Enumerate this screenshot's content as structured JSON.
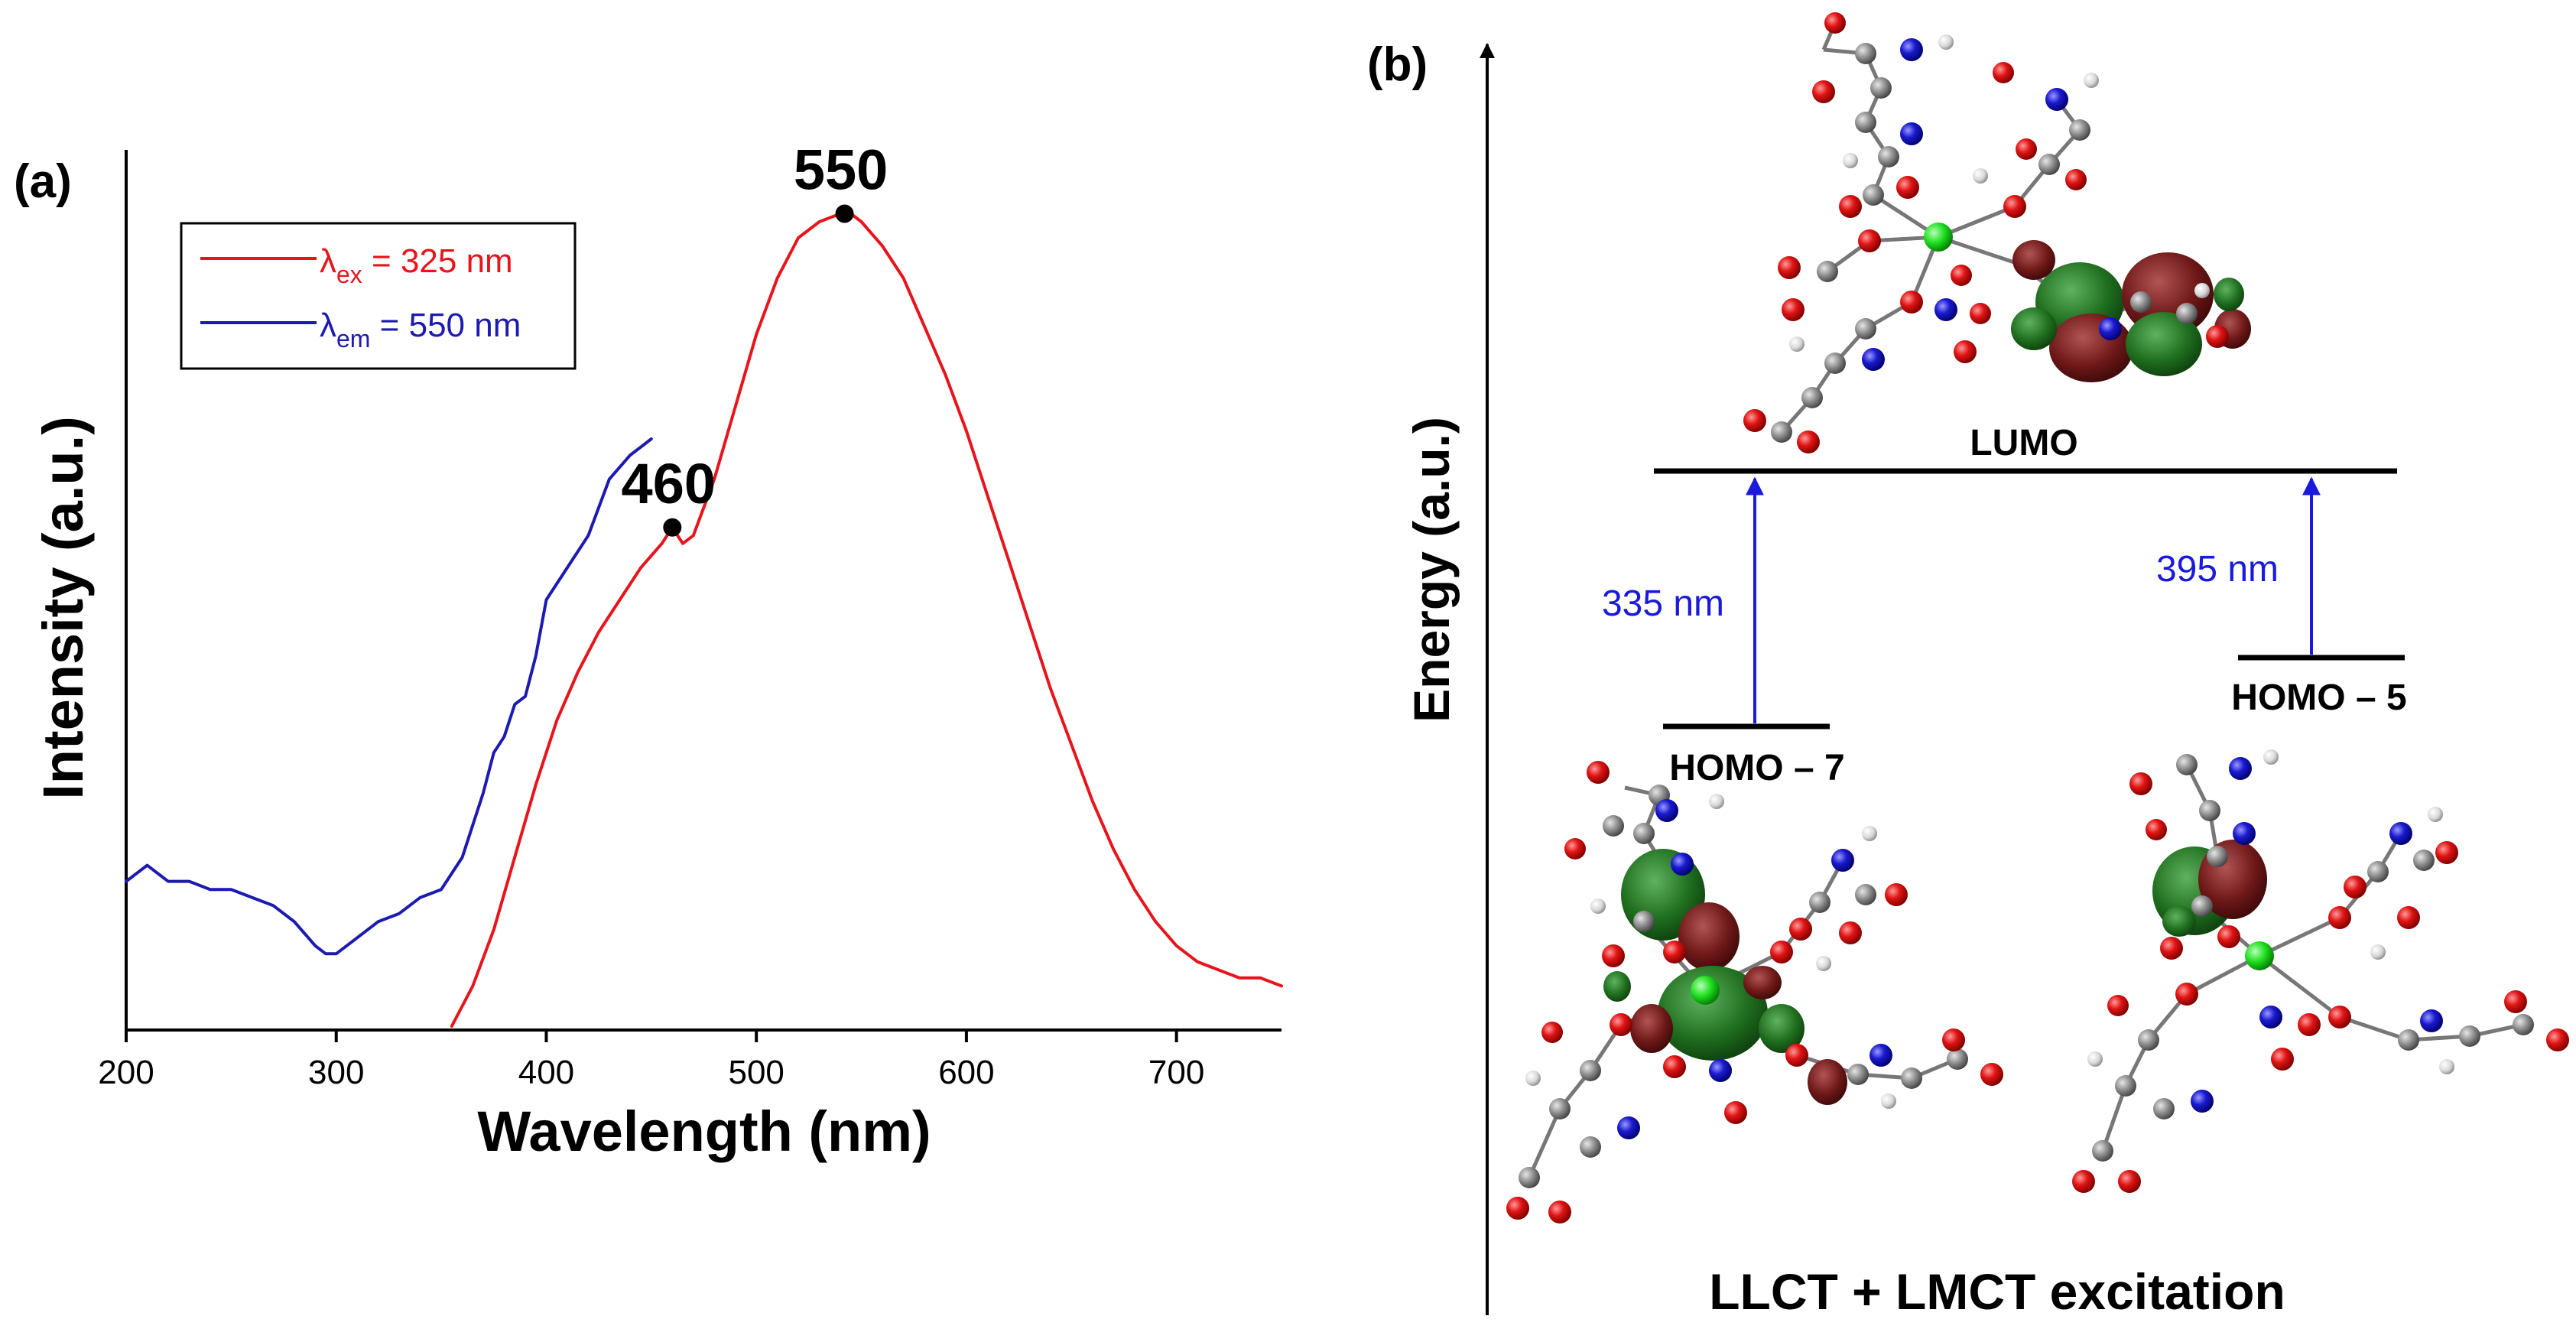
{
  "panel_a": {
    "panel_label": "(a)",
    "chart_data": {
      "type": "line",
      "title": "",
      "xlabel": "Wavelength (nm)",
      "ylabel": "Intensity (a.u.)",
      "xlim": [
        200,
        750
      ],
      "ylim": [
        0,
        1.0
      ],
      "x_ticks": [
        200,
        300,
        400,
        500,
        600,
        700
      ],
      "x_tick_labels": [
        "200",
        "300",
        "400",
        "500",
        "600",
        "700"
      ],
      "y_ticks_shown": false,
      "grid": false,
      "legend_position": "top-left",
      "series": [
        {
          "name": "λex = 325 nm",
          "legend_main": "λ",
          "legend_sub": "ex",
          "legend_rest": " = 325 nm",
          "color": "#e8141b",
          "x": [
            355,
            365,
            375,
            385,
            395,
            405,
            415,
            425,
            435,
            445,
            455,
            460,
            465,
            470,
            480,
            490,
            500,
            510,
            520,
            530,
            540,
            545,
            550,
            560,
            570,
            580,
            590,
            600,
            610,
            620,
            630,
            640,
            650,
            660,
            670,
            680,
            690,
            700,
            710,
            720,
            730,
            740,
            750
          ],
          "y": [
            0.0,
            0.05,
            0.12,
            0.21,
            0.3,
            0.38,
            0.44,
            0.49,
            0.53,
            0.57,
            0.6,
            0.62,
            0.6,
            0.61,
            0.68,
            0.77,
            0.86,
            0.93,
            0.98,
            1.0,
            1.01,
            1.01,
            1.0,
            0.97,
            0.93,
            0.87,
            0.81,
            0.74,
            0.66,
            0.58,
            0.5,
            0.42,
            0.35,
            0.28,
            0.22,
            0.17,
            0.13,
            0.1,
            0.08,
            0.07,
            0.06,
            0.06,
            0.05
          ]
        },
        {
          "name": "λem = 550 nm",
          "legend_main": "λ",
          "legend_sub": "em",
          "legend_rest": " = 550 nm",
          "color": "#1c1ab0",
          "x": [
            200,
            210,
            220,
            230,
            240,
            250,
            260,
            270,
            280,
            290,
            295,
            300,
            310,
            320,
            330,
            340,
            350,
            360,
            370,
            375,
            380,
            385,
            390,
            395,
            400,
            405,
            410,
            420,
            430,
            440,
            445,
            450
          ],
          "y": [
            0.18,
            0.2,
            0.18,
            0.18,
            0.17,
            0.17,
            0.16,
            0.15,
            0.13,
            0.1,
            0.09,
            0.09,
            0.11,
            0.13,
            0.14,
            0.16,
            0.17,
            0.21,
            0.29,
            0.34,
            0.36,
            0.4,
            0.41,
            0.46,
            0.53,
            0.55,
            0.57,
            0.61,
            0.68,
            0.71,
            0.72,
            0.73
          ]
        }
      ],
      "annotations": [
        {
          "label": "460",
          "x": 460,
          "y": 0.62
        },
        {
          "label": "550",
          "x": 542,
          "y": 1.01
        }
      ]
    }
  },
  "panel_b": {
    "panel_label": "(b)",
    "y_axis_label": "Energy (a.u.)",
    "bottom_caption": "LLCT + LMCT excitation",
    "levels": [
      {
        "label": "LUMO"
      },
      {
        "label": "HOMO – 7"
      },
      {
        "label": "HOMO – 5"
      }
    ],
    "transitions": [
      {
        "label": "335 nm",
        "from": "HOMO – 7",
        "to": "LUMO"
      },
      {
        "label": "395 nm",
        "from": "HOMO – 5",
        "to": "LUMO"
      }
    ],
    "colors": {
      "transition_arrow": "#1a1adc",
      "lobe_green": "#1d6b1d",
      "lobe_red": "#6b1414",
      "oxygen": "#d41010",
      "nitrogen": "#1a1ac8",
      "carbon": "#8a8a8a",
      "hydrogen": "#e6e6e6",
      "metal": "#22dd22"
    }
  }
}
